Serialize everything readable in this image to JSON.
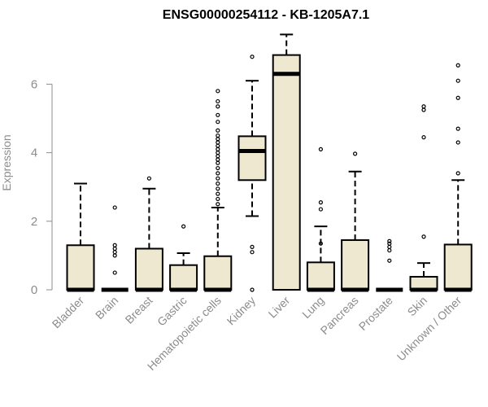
{
  "chart_data": {
    "type": "boxplot",
    "title": "ENSG00000254112 - KB-1205A7.1",
    "xlabel": "",
    "ylabel": "Expression",
    "ylim": [
      0,
      7.5
    ],
    "yticks": [
      0,
      2,
      4,
      6
    ],
    "grid": false,
    "box_fill": "#efe8d0",
    "categories": [
      "Bladder",
      "Brain",
      "Breast",
      "Gastric",
      "Hematopoietic cells",
      "Kidney",
      "Liver",
      "Lung",
      "Pancreas",
      "Prostate",
      "Skin",
      "Unknown / Other"
    ],
    "boxes": [
      {
        "min": 0,
        "q1": 0,
        "median": 0,
        "q3": 1.3,
        "max": 3.1,
        "outliers": []
      },
      {
        "min": 0,
        "q1": 0,
        "median": 0,
        "q3": 0,
        "max": 0,
        "outliers": [
          0.5,
          1.0,
          1.1,
          1.2,
          1.3,
          2.4
        ]
      },
      {
        "min": 0,
        "q1": 0,
        "median": 0,
        "q3": 1.2,
        "max": 2.95,
        "outliers": [
          3.25
        ]
      },
      {
        "min": 0,
        "q1": 0,
        "median": 0,
        "q3": 0.72,
        "max": 1.07,
        "outliers": [
          1.85
        ]
      },
      {
        "min": 0,
        "q1": 0,
        "median": 0,
        "q3": 0.98,
        "max": 2.4,
        "outliers": [
          2.5,
          2.65,
          2.8,
          2.95,
          3.1,
          3.25,
          3.4,
          3.55,
          3.7,
          3.8,
          3.9,
          4.0,
          4.1,
          4.2,
          4.3,
          4.4,
          4.5,
          4.65,
          4.9,
          5.1,
          5.35,
          5.5,
          5.8
        ]
      },
      {
        "min": 2.15,
        "q1": 3.2,
        "median": 4.05,
        "q3": 4.48,
        "max": 6.1,
        "outliers": [
          0,
          1.1,
          1.25,
          6.8
        ]
      },
      {
        "min": 0,
        "q1": 0,
        "median": 6.3,
        "q3": 6.85,
        "max": 7.45,
        "outliers": []
      },
      {
        "min": 0,
        "q1": 0,
        "median": 0,
        "q3": 0.8,
        "max": 1.85,
        "outliers": [
          1.35,
          2.35,
          2.55,
          4.1
        ]
      },
      {
        "min": 0,
        "q1": 0,
        "median": 0,
        "q3": 1.45,
        "max": 3.45,
        "outliers": [
          3.97
        ]
      },
      {
        "min": 0,
        "q1": 0,
        "median": 0,
        "q3": 0,
        "max": 0,
        "outliers": [
          0.85,
          1.15,
          1.25,
          1.35,
          1.42
        ]
      },
      {
        "min": 0,
        "q1": 0,
        "median": 0,
        "q3": 0.38,
        "max": 0.78,
        "outliers": [
          1.55,
          4.45,
          5.25,
          5.35
        ]
      },
      {
        "min": 0,
        "q1": 0,
        "median": 0,
        "q3": 1.32,
        "max": 3.2,
        "outliers": [
          3.4,
          4.3,
          4.7,
          5.6,
          6.1,
          6.55
        ]
      }
    ]
  }
}
